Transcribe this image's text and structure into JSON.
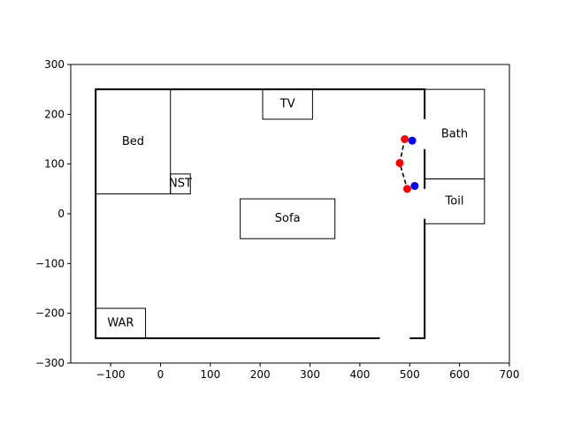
{
  "chart_data": {
    "type": "scatter",
    "xlim": [
      -180,
      700
    ],
    "ylim": [
      -300,
      300
    ],
    "xticks": [
      -100,
      0,
      100,
      200,
      300,
      400,
      500,
      600,
      700
    ],
    "yticks": [
      -300,
      -200,
      -100,
      0,
      100,
      200,
      300
    ],
    "xtick_labels": [
      "−100",
      "0",
      "100",
      "200",
      "300",
      "400",
      "500",
      "600",
      "700"
    ],
    "ytick_labels": [
      "−300",
      "−200",
      "−100",
      "0",
      "100",
      "200",
      "300"
    ],
    "room_outline": [
      [
        -130,
        -250
      ],
      [
        530,
        -250
      ],
      [
        530,
        250
      ],
      [
        -130,
        250
      ]
    ],
    "door_gaps": [
      {
        "x1": 440,
        "y1": -250,
        "x2": 500,
        "y2": -250
      },
      {
        "x1": 530,
        "y1": 130,
        "x2": 530,
        "y2": 190
      },
      {
        "x1": 530,
        "y1": -10,
        "x2": 530,
        "y2": 50
      }
    ],
    "objects": [
      {
        "label": "TV",
        "x0": 205,
        "y0": 190,
        "x1": 305,
        "y1": 250
      },
      {
        "label": "Bed",
        "x0": -130,
        "y0": 40,
        "x1": 20,
        "y1": 250
      },
      {
        "label": "NST",
        "x0": 20,
        "y0": 40,
        "x1": 60,
        "y1": 80
      },
      {
        "label": "Sofa",
        "x0": 160,
        "y0": -50,
        "x1": 350,
        "y1": 30
      },
      {
        "label": "Bath",
        "x0": 530,
        "y0": 70,
        "x1": 650,
        "y1": 250
      },
      {
        "label": "Toil",
        "x0": 530,
        "y0": -20,
        "x1": 650,
        "y1": 70
      },
      {
        "label": "WAR",
        "x0": -130,
        "y0": -250,
        "x1": -30,
        "y1": -190
      }
    ],
    "path": [
      {
        "x": 505,
        "y": 147
      },
      {
        "x": 490,
        "y": 150
      },
      {
        "x": 480,
        "y": 102
      },
      {
        "x": 495,
        "y": 50
      },
      {
        "x": 510,
        "y": 56
      }
    ],
    "red_points": [
      {
        "x": 490,
        "y": 150
      },
      {
        "x": 480,
        "y": 102
      },
      {
        "x": 495,
        "y": 50
      }
    ],
    "blue_points": [
      {
        "x": 505,
        "y": 147
      },
      {
        "x": 510,
        "y": 56
      }
    ],
    "colors": {
      "red": "#ff0000",
      "blue": "#0000ff",
      "line": "#000000",
      "gap": "#ffffff"
    }
  }
}
